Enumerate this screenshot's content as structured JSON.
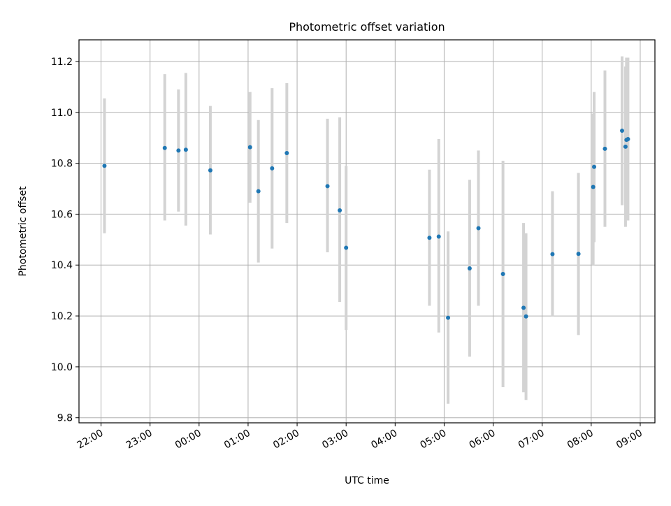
{
  "chart_data": {
    "type": "scatter",
    "title": "Photometric offset variation",
    "xlabel": "UTC time",
    "ylabel": "Photometric offset",
    "x_ticks": [
      "22:00",
      "23:00",
      "00:00",
      "01:00",
      "02:00",
      "03:00",
      "04:00",
      "05:00",
      "06:00",
      "07:00",
      "08:00",
      "09:00"
    ],
    "y_ticks": [
      "9.8",
      "10.0",
      "10.2",
      "10.4",
      "10.6",
      "10.8",
      "11.0",
      "11.2"
    ],
    "x_unit": "hours since 22:00 UTC",
    "xlim": [
      -0.45,
      11.3
    ],
    "ylim": [
      9.78,
      11.285
    ],
    "grid": true,
    "marker_color": "#1f77b4",
    "errorbar_color": "#d3d3d3",
    "points": [
      {
        "x": 0.07,
        "y": 10.79,
        "lo": 10.525,
        "hi": 11.055
      },
      {
        "x": 1.3,
        "y": 10.86,
        "lo": 10.575,
        "hi": 11.15
      },
      {
        "x": 1.58,
        "y": 10.85,
        "lo": 10.61,
        "hi": 11.09
      },
      {
        "x": 1.73,
        "y": 10.853,
        "lo": 10.555,
        "hi": 11.155
      },
      {
        "x": 2.23,
        "y": 10.772,
        "lo": 10.52,
        "hi": 11.025
      },
      {
        "x": 3.04,
        "y": 10.863,
        "lo": 10.645,
        "hi": 11.08
      },
      {
        "x": 3.21,
        "y": 10.69,
        "lo": 10.41,
        "hi": 10.97
      },
      {
        "x": 3.49,
        "y": 10.78,
        "lo": 10.465,
        "hi": 11.095
      },
      {
        "x": 3.79,
        "y": 10.84,
        "lo": 10.565,
        "hi": 11.115
      },
      {
        "x": 4.62,
        "y": 10.71,
        "lo": 10.45,
        "hi": 10.975
      },
      {
        "x": 4.87,
        "y": 10.615,
        "lo": 10.255,
        "hi": 10.98
      },
      {
        "x": 5.0,
        "y": 10.468,
        "lo": 10.145,
        "hi": 10.79
      },
      {
        "x": 6.7,
        "y": 10.507,
        "lo": 10.24,
        "hi": 10.775
      },
      {
        "x": 6.89,
        "y": 10.512,
        "lo": 10.135,
        "hi": 10.895
      },
      {
        "x": 7.08,
        "y": 10.193,
        "lo": 9.855,
        "hi": 10.532
      },
      {
        "x": 7.52,
        "y": 10.387,
        "lo": 10.04,
        "hi": 10.735
      },
      {
        "x": 7.7,
        "y": 10.545,
        "lo": 10.24,
        "hi": 10.85
      },
      {
        "x": 8.2,
        "y": 10.365,
        "lo": 9.92,
        "hi": 10.81
      },
      {
        "x": 8.62,
        "y": 10.232,
        "lo": 9.9,
        "hi": 10.565
      },
      {
        "x": 8.67,
        "y": 10.198,
        "lo": 9.87,
        "hi": 10.525
      },
      {
        "x": 9.21,
        "y": 10.443,
        "lo": 10.2,
        "hi": 10.69
      },
      {
        "x": 9.74,
        "y": 10.444,
        "lo": 10.125,
        "hi": 10.762
      },
      {
        "x": 10.04,
        "y": 10.707,
        "lo": 10.4,
        "hi": 10.995
      },
      {
        "x": 10.06,
        "y": 10.786,
        "lo": 10.49,
        "hi": 11.08
      },
      {
        "x": 10.28,
        "y": 10.857,
        "lo": 10.55,
        "hi": 11.165
      },
      {
        "x": 10.63,
        "y": 10.928,
        "lo": 10.635,
        "hi": 11.22
      },
      {
        "x": 10.7,
        "y": 10.865,
        "lo": 10.55,
        "hi": 11.18
      },
      {
        "x": 10.72,
        "y": 10.892,
        "lo": 10.58,
        "hi": 11.215
      },
      {
        "x": 10.75,
        "y": 10.895,
        "lo": 10.575,
        "hi": 11.215
      }
    ]
  }
}
